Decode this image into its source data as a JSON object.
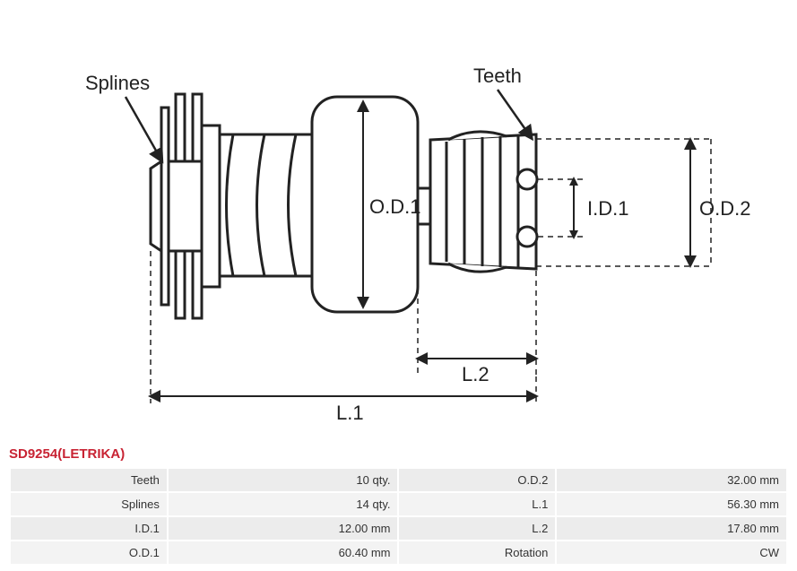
{
  "part": {
    "code": "SD9254",
    "brand": "LETRIKA",
    "title": "SD9254(LETRIKA)"
  },
  "diagram": {
    "labels": {
      "splines": "Splines",
      "teeth": "Teeth",
      "od1": "O.D.1",
      "od2": "O.D.2",
      "id1": "I.D.1",
      "l1": "L.1",
      "l2": "L.2"
    },
    "stroke_color": "#222222",
    "stroke_width": 3,
    "dash": "6,5",
    "background": "#ffffff"
  },
  "specs": [
    {
      "label_a": "Teeth",
      "value_a": "10 qty.",
      "label_b": "O.D.2",
      "value_b": "32.00 mm"
    },
    {
      "label_a": "Splines",
      "value_a": "14 qty.",
      "label_b": "L.1",
      "value_b": "56.30 mm"
    },
    {
      "label_a": "I.D.1",
      "value_a": "12.00 mm",
      "label_b": "L.2",
      "value_b": "17.80 mm"
    },
    {
      "label_a": "O.D.1",
      "value_a": "60.40 mm",
      "label_b": "Rotation",
      "value_b": "CW"
    }
  ],
  "table_style": {
    "row_bg_odd": "#ececec",
    "row_bg_even": "#f3f3f3",
    "font_size": 13,
    "title_color": "#c82333"
  }
}
